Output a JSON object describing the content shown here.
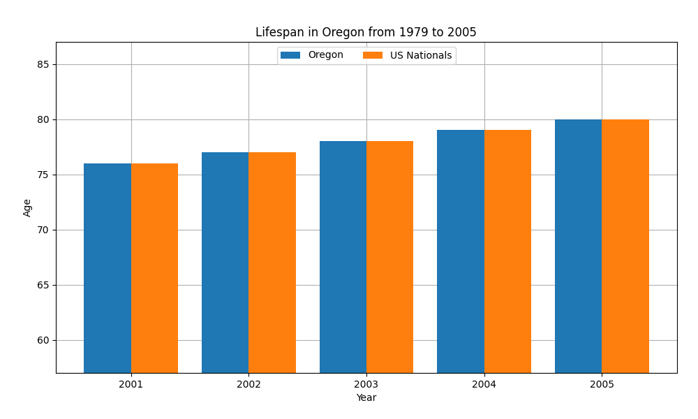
{
  "chart_data": {
    "type": "bar",
    "title": "Lifespan in Oregon from 1979 to 2005",
    "x_label": "Year",
    "y_label": "Age",
    "categories": [
      "2001",
      "2002",
      "2003",
      "2004",
      "2005"
    ],
    "series": [
      {
        "name": "Oregon",
        "values": [
          76,
          77,
          78,
          79,
          80
        ]
      },
      {
        "name": "US Nationals",
        "values": [
          76,
          77,
          78,
          79,
          80
        ]
      }
    ],
    "ylim": [
      57,
      87
    ],
    "yticks": [
      60,
      65,
      70,
      75,
      80,
      85
    ],
    "grid": true,
    "legend": "upper center"
  }
}
